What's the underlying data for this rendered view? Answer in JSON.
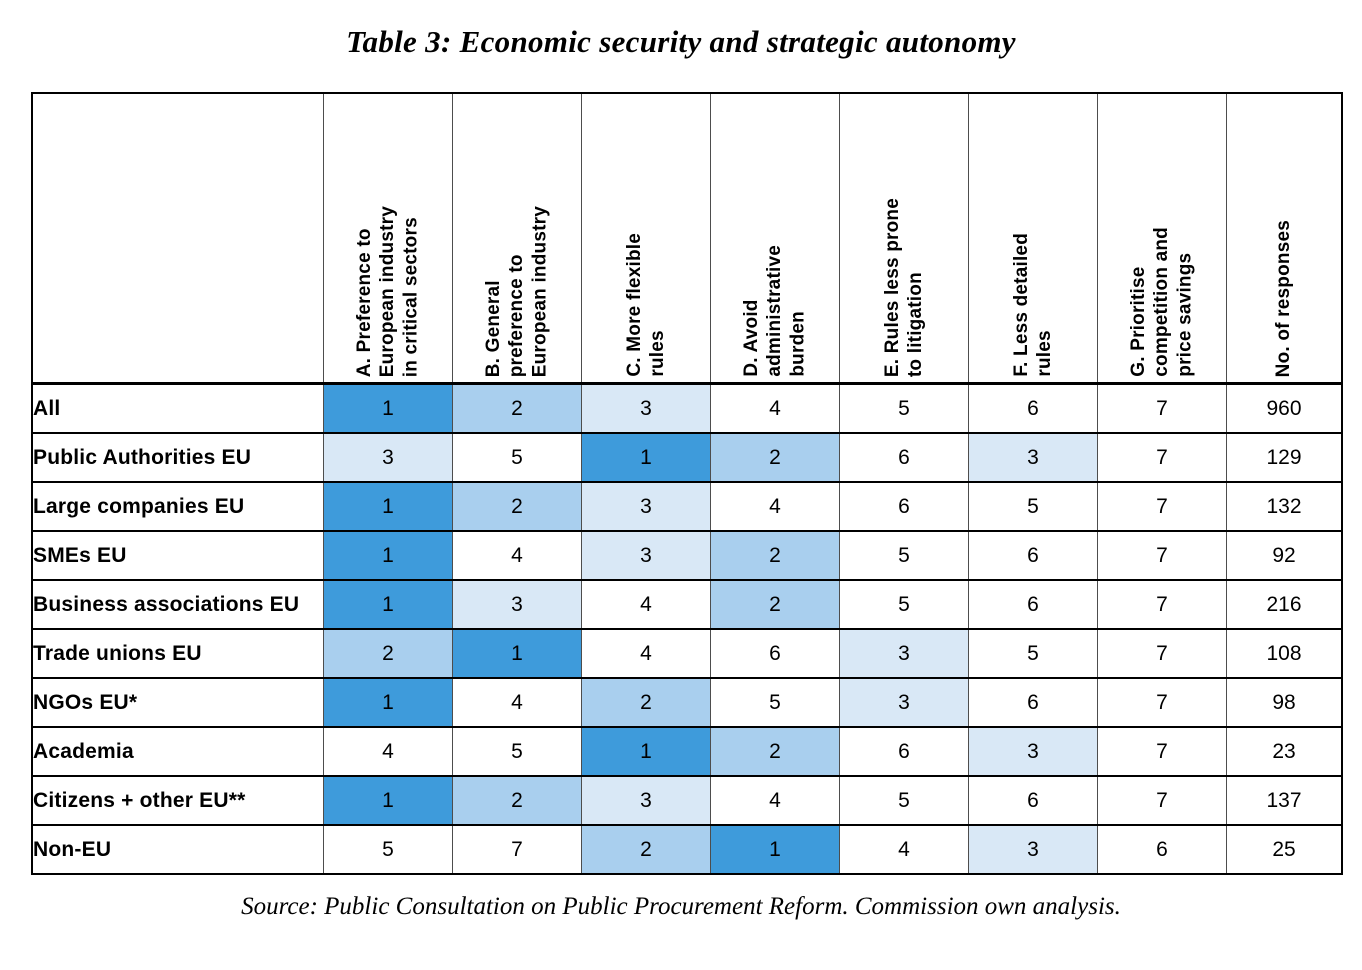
{
  "title": "Table 3: Economic security and strategic autonomy",
  "source_note": "Source: Public Consultation on Public Procurement Reform. Commission own analysis.",
  "colors": {
    "rank_1_fill": "#3E9BDB",
    "rank_2_fill": "#A9CFEE",
    "rank_3_fill": "#D9E8F6",
    "grid_heavy": "#000000",
    "grid_light": "#4d4d4d"
  },
  "chart_data": {
    "type": "table",
    "title": "Table 3: Economic security and strategic autonomy",
    "columns": [
      {
        "key": "A",
        "label": "A. Preference to\nEuropean industry\nin critical sectors"
      },
      {
        "key": "B",
        "label": "B. General\npreference to\nEuropean industry"
      },
      {
        "key": "C",
        "label": "C. More flexible\nrules"
      },
      {
        "key": "D",
        "label": "D. Avoid\nadministrative\nburden"
      },
      {
        "key": "E",
        "label": "E. Rules less prone\nto litigation"
      },
      {
        "key": "F",
        "label": "F. Less detailed\nrules"
      },
      {
        "key": "G",
        "label": "G. Prioritise\ncompetition and\nprice savings"
      }
    ],
    "responses_column_label": "No. of responses",
    "shading_rule": "cells with rank 1 are dark blue, rank 2 medium blue, rank 3 light blue, all others white",
    "rows": [
      {
        "label": "All",
        "ranks": [
          1,
          2,
          3,
          4,
          5,
          6,
          7
        ],
        "responses": 960
      },
      {
        "label": "Public Authorities EU",
        "ranks": [
          3,
          5,
          1,
          2,
          6,
          3,
          7
        ],
        "responses": 129
      },
      {
        "label": "Large companies EU",
        "ranks": [
          1,
          2,
          3,
          4,
          6,
          5,
          7
        ],
        "responses": 132
      },
      {
        "label": "SMEs EU",
        "ranks": [
          1,
          4,
          3,
          2,
          5,
          6,
          7
        ],
        "responses": 92
      },
      {
        "label": "Business associations EU",
        "ranks": [
          1,
          3,
          4,
          2,
          5,
          6,
          7
        ],
        "responses": 216
      },
      {
        "label": "Trade unions EU",
        "ranks": [
          2,
          1,
          4,
          6,
          3,
          5,
          7
        ],
        "responses": 108
      },
      {
        "label": "NGOs EU*",
        "ranks": [
          1,
          4,
          2,
          5,
          3,
          6,
          7
        ],
        "responses": 98
      },
      {
        "label": "Academia",
        "ranks": [
          4,
          5,
          1,
          2,
          6,
          3,
          7
        ],
        "responses": 23
      },
      {
        "label": "Citizens + other EU**",
        "ranks": [
          1,
          2,
          3,
          4,
          5,
          6,
          7
        ],
        "responses": 137
      },
      {
        "label": "Non-EU",
        "ranks": [
          5,
          7,
          2,
          1,
          4,
          3,
          6
        ],
        "responses": 25
      }
    ]
  }
}
